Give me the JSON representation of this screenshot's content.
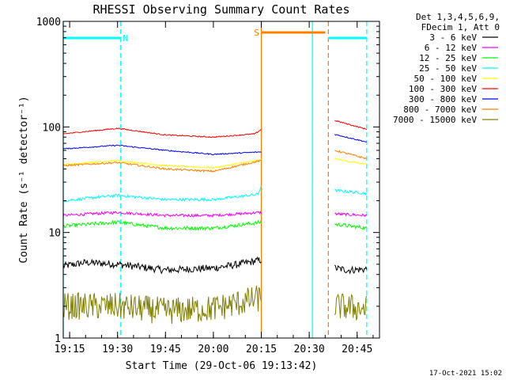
{
  "chart_data": {
    "type": "line",
    "title": "RHESSI Observing Summary Count Rates",
    "xlabel": "Start Time (29-Oct-06 19:13:42)",
    "ylabel": "Count Rate (s⁻¹ detector⁻¹)",
    "yscale": "log",
    "ylim": [
      1,
      1000
    ],
    "xlim": [
      "19:13",
      "20:52"
    ],
    "x_ticks": [
      "19:15",
      "19:30",
      "19:45",
      "20:00",
      "20:15",
      "20:30",
      "20:45"
    ],
    "y_ticks": [
      "1",
      "10",
      "100",
      "1000"
    ],
    "legend_header": [
      "Det 1,3,4,5,6,9,",
      "FDecim 1, Att 0"
    ],
    "legend_position": "right",
    "timestamp": "17-Oct-2021 15:02",
    "segments": [
      [
        "19:13",
        "20:15"
      ],
      [
        "20:38",
        "20:48"
      ]
    ],
    "gap_lines": [
      {
        "x": "19:13",
        "color": "#00ffff",
        "style": "solid"
      },
      {
        "x": "19:31",
        "color": "#00ffff",
        "style": "dashed"
      },
      {
        "x": "20:15",
        "color": "#ff8000",
        "style": "solid"
      },
      {
        "x": "20:31",
        "color": "#00ffff",
        "style": "solid"
      },
      {
        "x": "20:36",
        "color": "#ff8000",
        "style": "dashed"
      },
      {
        "x": "20:48",
        "color": "#00ffff",
        "style": "dashed"
      }
    ],
    "flag_bars": [
      {
        "label": "N",
        "x": [
          "19:13",
          "19:31"
        ],
        "color": "#00ffff"
      },
      {
        "label": "S",
        "x": [
          "20:15",
          "20:35"
        ],
        "color": "#ff8000"
      },
      {
        "label": "",
        "x": [
          "20:36",
          "20:48"
        ],
        "color": "#00ffff"
      }
    ],
    "series": [
      {
        "name": "3 - 6 keV",
        "color": "#000000",
        "noise": 0.08,
        "x": [
          "19:13",
          "19:20",
          "19:30",
          "19:45",
          "20:00",
          "20:08",
          "20:15",
          "20:38",
          "20:42",
          "20:48"
        ],
        "y": [
          4.8,
          5.2,
          5.0,
          4.4,
          4.6,
          5.0,
          5.5,
          4.6,
          4.4,
          4.5
        ]
      },
      {
        "name": "6 - 12 keV",
        "color": "#ff00ff",
        "noise": 0.03,
        "x": [
          "19:13",
          "19:30",
          "19:45",
          "20:00",
          "20:15",
          "20:38",
          "20:48"
        ],
        "y": [
          14.5,
          15.5,
          14.5,
          14.5,
          15.5,
          15,
          14.5
        ]
      },
      {
        "name": "12 - 25 keV",
        "color": "#00ff00",
        "noise": 0.04,
        "x": [
          "19:13",
          "19:30",
          "19:45",
          "20:00",
          "20:15",
          "20:38",
          "20:48"
        ],
        "y": [
          11.5,
          12.5,
          11,
          11,
          12.5,
          12,
          11
        ]
      },
      {
        "name": "25 - 50 keV",
        "color": "#00ffff",
        "noise": 0.03,
        "x": [
          "19:13",
          "19:30",
          "19:45",
          "20:00",
          "20:14",
          "20:15",
          "20:38",
          "20:48"
        ],
        "y": [
          20,
          22.5,
          20.5,
          20.5,
          23,
          28,
          25,
          23.5
        ]
      },
      {
        "name": "50 - 100 keV",
        "color": "#ffff00",
        "noise": 0.015,
        "x": [
          "19:13",
          "19:30",
          "19:45",
          "20:00",
          "20:15",
          "20:38",
          "20:48"
        ],
        "y": [
          44,
          48,
          43,
          41,
          49,
          50,
          44
        ]
      },
      {
        "name": "100 - 300 keV",
        "color": "#ff0000",
        "noise": 0.012,
        "x": [
          "19:13",
          "19:30",
          "19:45",
          "20:00",
          "20:13",
          "20:15",
          "20:38",
          "20:48"
        ],
        "y": [
          86,
          97,
          84,
          80,
          86,
          95,
          115,
          95
        ]
      },
      {
        "name": "300 - 800 keV",
        "color": "#0000ff",
        "noise": 0.012,
        "x": [
          "19:13",
          "19:30",
          "19:45",
          "20:00",
          "20:15",
          "20:38",
          "20:48"
        ],
        "y": [
          62,
          67,
          60,
          55,
          58,
          85,
          72
        ]
      },
      {
        "name": "800 - 7000 keV",
        "color": "#ff8000",
        "noise": 0.02,
        "x": [
          "19:13",
          "19:30",
          "19:45",
          "20:00",
          "20:15",
          "20:38",
          "20:48"
        ],
        "y": [
          43,
          46,
          40,
          38,
          48,
          60,
          50
        ]
      },
      {
        "name": "7000 - 15000 keV",
        "color": "#808000",
        "noise": 0.3,
        "x": [
          "19:13",
          "19:30",
          "19:45",
          "20:00",
          "20:15",
          "20:38",
          "20:48"
        ],
        "y": [
          2,
          2,
          1.8,
          1.9,
          2.4,
          2,
          1.9
        ]
      }
    ]
  }
}
